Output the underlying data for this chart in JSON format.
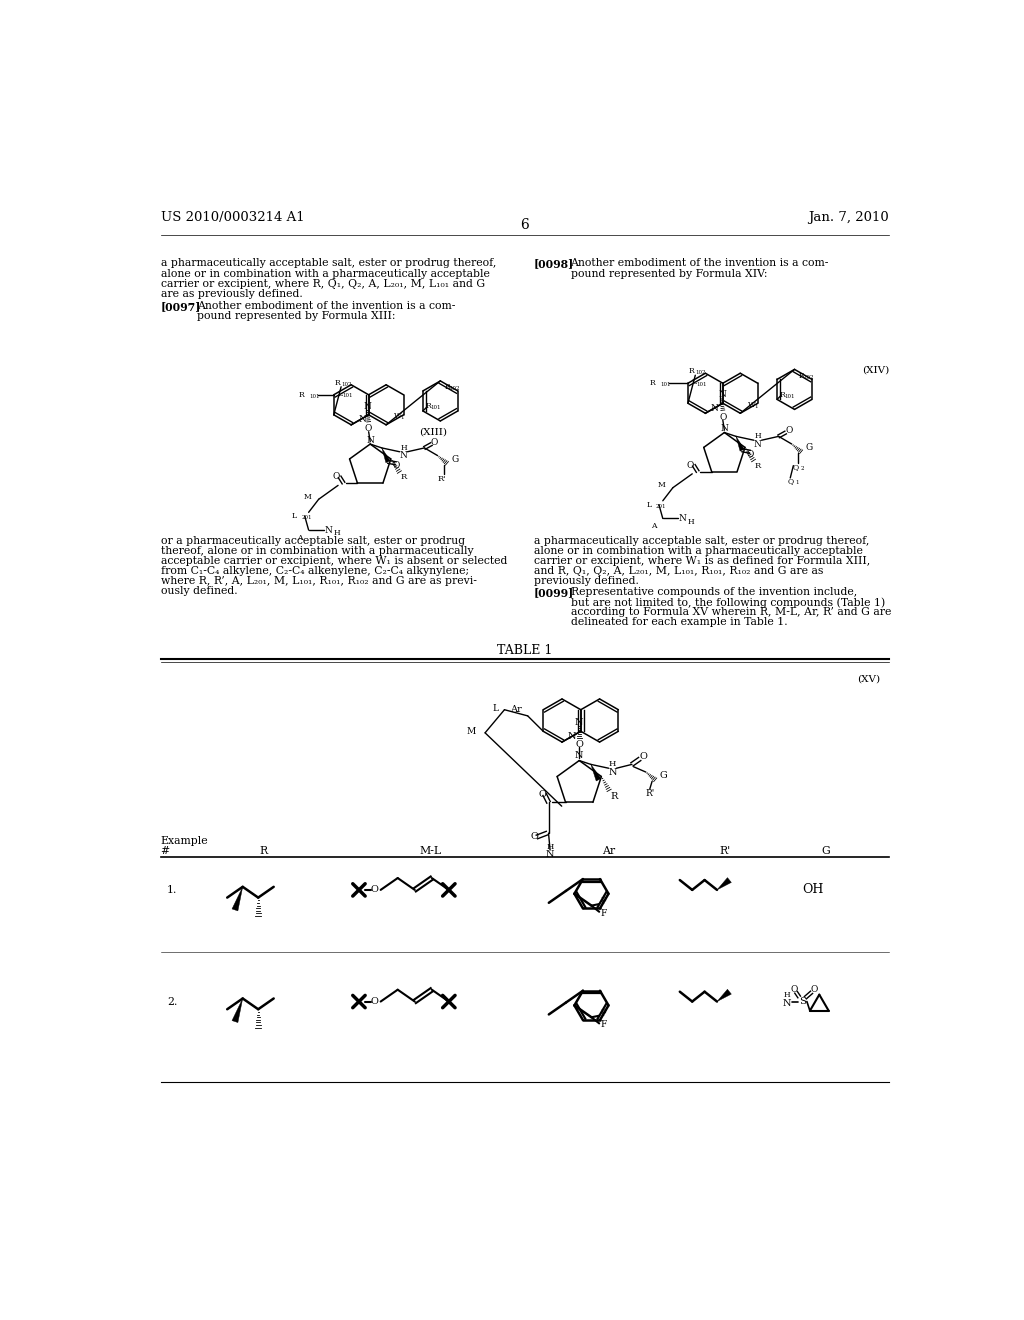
{
  "page_width": 10.24,
  "page_height": 13.2,
  "dpi": 100,
  "bg_color": "#ffffff",
  "header_left": "US 2010/0003214 A1",
  "header_right": "Jan. 7, 2010",
  "page_number": "6",
  "font_family": "DejaVu Serif",
  "body_font_size": 7.8,
  "text_color": "#000000"
}
